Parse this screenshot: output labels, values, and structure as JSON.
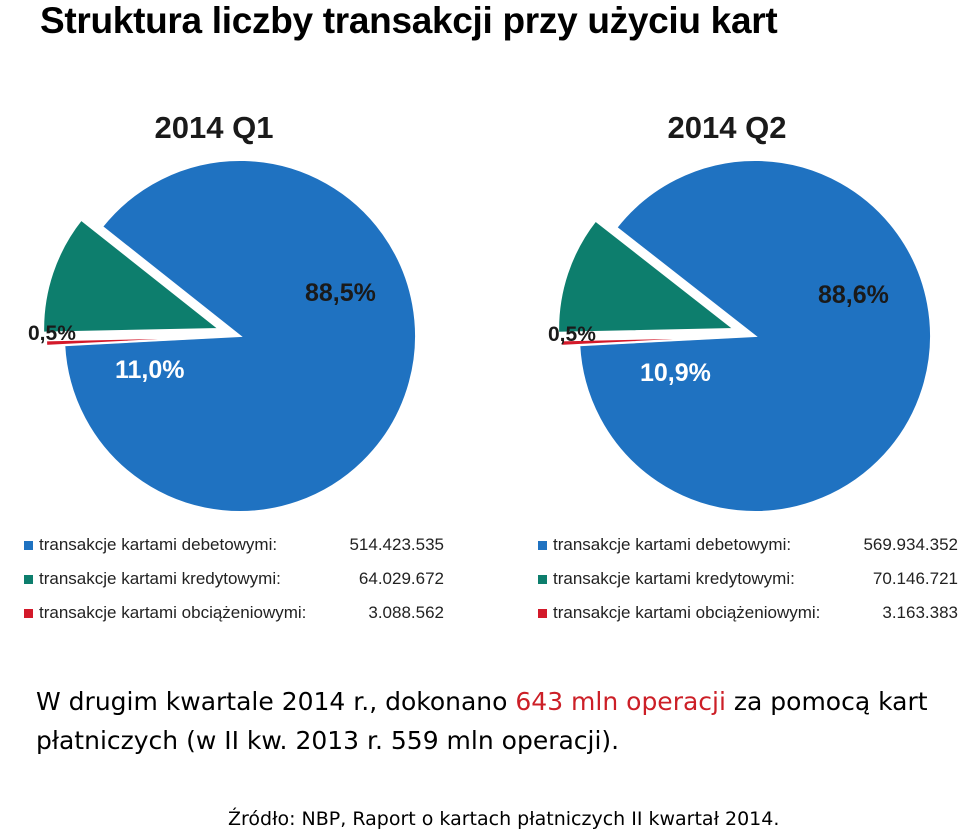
{
  "title": "Struktura liczby transakcji przy użyciu kart",
  "colors": {
    "debit": "#1f72c1",
    "credit": "#0d7e6d",
    "charge": "#d3192a"
  },
  "chart_data": [
    {
      "type": "pie",
      "title": "2014 Q1",
      "slices": [
        {
          "label": "transakcje kartami debetowymi:",
          "value": "514.423.535",
          "percent": 88.5,
          "percent_label": "88,5%",
          "color": "#1f72c1"
        },
        {
          "label": "transakcje kartami kredytowymi:",
          "value": "64.029.672",
          "percent": 11.0,
          "percent_label": "11,0%",
          "color": "#0d7e6d"
        },
        {
          "label": "transakcje kartami obciążeniowymi:",
          "value": "3.088.562",
          "percent": 0.5,
          "percent_label": "0,5%",
          "color": "#d3192a"
        }
      ]
    },
    {
      "type": "pie",
      "title": "2014 Q2",
      "slices": [
        {
          "label": "transakcje kartami debetowymi:",
          "value": "569.934.352",
          "percent": 88.6,
          "percent_label": "88,6%",
          "color": "#1f72c1"
        },
        {
          "label": "transakcje kartami kredytowymi:",
          "value": "70.146.721",
          "percent": 10.9,
          "percent_label": "10,9%",
          "color": "#0d7e6d"
        },
        {
          "label": "transakcje kartami obciążeniowymi:",
          "value": "3.163.383",
          "percent": 0.5,
          "percent_label": "0,5%",
          "color": "#d3192a"
        }
      ]
    }
  ],
  "summary": {
    "part1": "W drugim kwartale 2014 r., dokonano ",
    "highlight": "643 mln operacji",
    "part2": " za pomocą kart płatniczych (w II kw. 2013 r. 559 mln operacji)."
  },
  "source": "Źródło: NBP, Raport o kartach płatniczych II kwartał 2014."
}
